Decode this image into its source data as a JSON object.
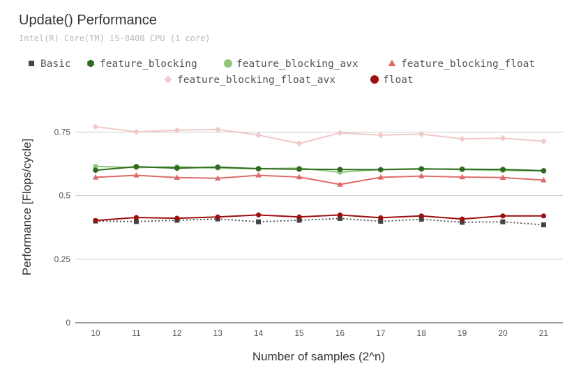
{
  "chart_data": {
    "type": "line",
    "title": "Update() Performance",
    "subtitle": "Intel(R) Core(TM) i5-8400 CPU (1 core)",
    "xlabel": "Number of samples (2^n)",
    "ylabel": "Performance [Flops/cycle]",
    "x": [
      10,
      11,
      12,
      13,
      14,
      15,
      16,
      17,
      18,
      19,
      20,
      21
    ],
    "x_tick_labels": [
      "10",
      "11",
      "12",
      "13",
      "14",
      "15",
      "16",
      "17",
      "18",
      "19",
      "20",
      "21"
    ],
    "ylim": [
      0,
      0.85
    ],
    "y_ticks": [
      0,
      0.25,
      0.5,
      0.75
    ],
    "y_tick_labels": [
      "0",
      "0.25",
      "0.5",
      "0.75"
    ],
    "grid": true,
    "legend_position": "top",
    "series": [
      {
        "name": "Basic",
        "color": "#444444",
        "marker": "square",
        "dash": "2,3",
        "values": [
          0.4,
          0.398,
          0.403,
          0.408,
          0.397,
          0.403,
          0.41,
          0.399,
          0.407,
          0.395,
          0.397,
          0.385
        ]
      },
      {
        "name": "feature_blocking",
        "color": "#2e6b1f",
        "marker": "hexagon",
        "dash": "",
        "values": [
          0.6,
          0.614,
          0.608,
          0.612,
          0.606,
          0.604,
          0.603,
          0.602,
          0.605,
          0.604,
          0.603,
          0.598
        ]
      },
      {
        "name": "feature_blocking_avx",
        "color": "#8ec67a",
        "marker": "circle",
        "dash": "",
        "values": [
          0.615,
          0.61,
          0.614,
          0.608,
          0.606,
          0.608,
          0.592,
          0.603,
          0.606,
          0.602,
          0.599,
          0.597
        ]
      },
      {
        "name": "feature_blocking_float",
        "color": "#df6a6a",
        "marker": "triangle",
        "dash": "",
        "values": [
          0.572,
          0.58,
          0.571,
          0.568,
          0.58,
          0.573,
          0.544,
          0.572,
          0.577,
          0.573,
          0.571,
          0.561
        ]
      },
      {
        "name": "feature_blocking_float_avx",
        "color": "#f1c9c9",
        "marker": "diamond",
        "dash": "",
        "values": [
          0.771,
          0.751,
          0.757,
          0.76,
          0.738,
          0.705,
          0.747,
          0.738,
          0.742,
          0.723,
          0.726,
          0.714
        ]
      },
      {
        "name": "float",
        "color": "#9c0f0f",
        "marker": "circle",
        "dash": "",
        "values": [
          0.402,
          0.414,
          0.411,
          0.416,
          0.424,
          0.416,
          0.424,
          0.413,
          0.42,
          0.408,
          0.42,
          0.42
        ]
      }
    ]
  }
}
